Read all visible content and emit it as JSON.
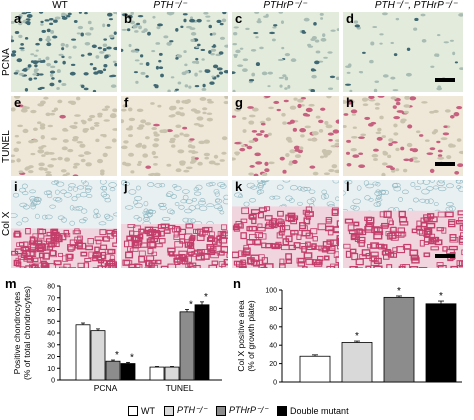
{
  "columns": [
    "WT",
    "PTH⁻/⁻",
    "PTHrP⁻/⁻",
    "PTH⁻/⁻, PTHrP⁻/⁻"
  ],
  "rows": [
    "PCNA",
    "TUNEL",
    "Col X"
  ],
  "panel_letters": [
    "a",
    "b",
    "c",
    "d",
    "e",
    "f",
    "g",
    "h",
    "i",
    "j",
    "k",
    "l"
  ],
  "chart_m_letter": "m",
  "chart_n_letter": "n",
  "legend": [
    "WT",
    "PTH⁻/⁻",
    "PTHrP⁻/⁻",
    "Double mutant"
  ],
  "colors": {
    "wt": "#ffffff",
    "pth": "#d9d9d9",
    "pthrp": "#8c8c8c",
    "double": "#000000",
    "pcna_bg": "#e3ebdc",
    "tunel_bg": "#efe7d8",
    "colx_bg": "#e9f0f2",
    "colx_stain": "#c43d6a"
  },
  "chart_data": [
    {
      "type": "bar",
      "ylabel": "Positive chondrocytes (% of total chondrocytes)",
      "categories": [
        "PCNA",
        "TUNEL"
      ],
      "ylim": [
        0,
        80
      ],
      "yticks": [
        0,
        10,
        20,
        30,
        40,
        50,
        60,
        70,
        80
      ],
      "series": [
        {
          "name": "WT",
          "values": [
            47,
            11
          ]
        },
        {
          "name": "PTH⁻/⁻",
          "values": [
            42,
            11
          ]
        },
        {
          "name": "PTHrP⁻/⁻",
          "values": [
            16,
            58
          ]
        },
        {
          "name": "Double mutant",
          "values": [
            14,
            64
          ]
        }
      ],
      "errors": [
        [
          1.5,
          0.5
        ],
        [
          1.5,
          0.5
        ],
        [
          1,
          2
        ],
        [
          1,
          2.5
        ]
      ],
      "significant": [
        [
          false,
          false
        ],
        [
          false,
          false
        ],
        [
          true,
          true
        ],
        [
          true,
          true
        ]
      ],
      "marker": "*"
    },
    {
      "type": "bar",
      "ylabel": "Col X positive area (% of growth plate)",
      "categories": [
        "WT",
        "PTH⁻/⁻",
        "PTHrP⁻/⁻",
        "Double mutant"
      ],
      "ylim": [
        0,
        100
      ],
      "yticks": [
        0,
        20,
        40,
        60,
        80,
        100
      ],
      "values": [
        28,
        43,
        92,
        85
      ],
      "errors": [
        1.5,
        1.5,
        1.5,
        3
      ],
      "significant": [
        false,
        true,
        true,
        true
      ],
      "marker": "*"
    }
  ]
}
